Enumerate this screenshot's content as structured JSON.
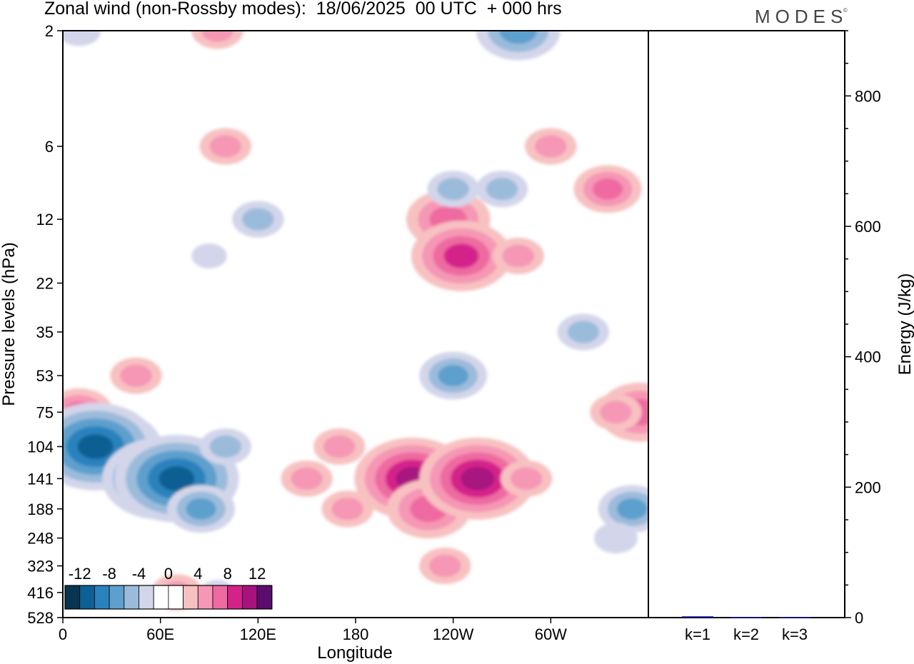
{
  "header": {
    "title": "Zonal wind (non-Rossby modes):  18/06/2025  00 UTC  + 000 hrs",
    "brand": "MODES",
    "brand_mark": "©"
  },
  "chart_data": [
    {
      "type": "heatmap",
      "title": "Zonal wind (non-Rossby modes):  18/06/2025  00 UTC  + 000 hrs",
      "xlabel": "Longitude",
      "ylabel": "Pressure levels (hPa)",
      "x_ticks": [
        "0",
        "60E",
        "120E",
        "180",
        "120W",
        "60W"
      ],
      "y_ticks": [
        "2",
        "6",
        "12",
        "22",
        "35",
        "53",
        "75",
        "104",
        "141",
        "188",
        "248",
        "323",
        "416",
        "528"
      ],
      "colorbar": {
        "labels": [
          "-12",
          "-8",
          "-4",
          "0",
          "4",
          "8",
          "12"
        ],
        "levels": [
          -14,
          -12,
          -10,
          -8,
          -6,
          -4,
          -2,
          2,
          4,
          6,
          8,
          10,
          12,
          14
        ],
        "colors": [
          "#073552",
          "#0e5f93",
          "#2a82bd",
          "#5d9fcd",
          "#9bbbdb",
          "#d3d6ea",
          "#ffffff",
          "#ffffff",
          "#f8c1c1",
          "#f597b5",
          "#ee6aa0",
          "#d4228b",
          "#a8127f",
          "#5b0d6e"
        ],
        "positive_colors": [
          "#f8c1c1",
          "#f597b5",
          "#ee6aa0",
          "#d4228b",
          "#a8127f"
        ],
        "negative_colors": [
          "#d3d6ea",
          "#9bbbdb",
          "#5d9fcd",
          "#2a82bd",
          "#0e5f93",
          "#073552"
        ]
      },
      "features": [
        {
          "lon": 10,
          "level": 75,
          "u": 6
        },
        {
          "lon": 30,
          "level": 104,
          "u": -10
        },
        {
          "lon": 20,
          "level": 104,
          "u": -13
        },
        {
          "lon": 60,
          "level": 141,
          "u": -12
        },
        {
          "lon": 70,
          "level": 141,
          "u": -13
        },
        {
          "lon": 85,
          "level": 188,
          "u": -6
        },
        {
          "lon": 100,
          "level": 104,
          "u": -4
        },
        {
          "lon": 45,
          "level": 53,
          "u": 4
        },
        {
          "lon": 95,
          "level": 416,
          "u": -2
        },
        {
          "lon": 70,
          "level": 416,
          "u": 4
        },
        {
          "lon": 150,
          "level": 141,
          "u": 4
        },
        {
          "lon": 170,
          "level": 104,
          "u": 4
        },
        {
          "lon": 175,
          "level": 188,
          "u": 4
        },
        {
          "lon": 215,
          "level": 141,
          "u": 12
        },
        {
          "lon": 225,
          "level": 188,
          "u": 8
        },
        {
          "lon": 235,
          "level": 323,
          "u": 4
        },
        {
          "lon": 255,
          "level": 141,
          "u": 12
        },
        {
          "lon": 285,
          "level": 141,
          "u": 4
        },
        {
          "lon": 240,
          "level": 53,
          "u": -6
        },
        {
          "lon": 320,
          "level": 35,
          "u": -4
        },
        {
          "lon": 237,
          "level": 12,
          "u": 8
        },
        {
          "lon": 245,
          "level": 17,
          "u": 10
        },
        {
          "lon": 280,
          "level": 17,
          "u": 4
        },
        {
          "lon": 300,
          "level": 6,
          "u": 4
        },
        {
          "lon": 335,
          "level": 9,
          "u": 6
        },
        {
          "lon": 240,
          "level": 9,
          "u": -4
        },
        {
          "lon": 270,
          "level": 9,
          "u": -4
        },
        {
          "lon": 280,
          "level": 2,
          "u": -8
        },
        {
          "lon": 120,
          "level": 12,
          "u": -4
        },
        {
          "lon": 90,
          "level": 17,
          "u": -2
        },
        {
          "lon": 100,
          "level": 6,
          "u": 4
        },
        {
          "lon": 95,
          "level": 2,
          "u": 4
        },
        {
          "lon": 355,
          "level": 75,
          "u": 8
        },
        {
          "lon": 340,
          "level": 75,
          "u": 4
        },
        {
          "lon": 350,
          "level": 188,
          "u": -6
        },
        {
          "lon": 340,
          "level": 248,
          "u": -3
        },
        {
          "lon": 10,
          "level": 2,
          "u": -3
        }
      ]
    },
    {
      "type": "bar",
      "categories": [
        "k=1",
        "k=2",
        "k=3"
      ],
      "values": [
        2,
        1,
        1
      ],
      "ylabel": "Energy (J/kg)",
      "ylim": [
        0,
        900
      ],
      "y_ticks": [
        0,
        200,
        400,
        600,
        800
      ],
      "bar_color": "#1a1aa0"
    }
  ]
}
